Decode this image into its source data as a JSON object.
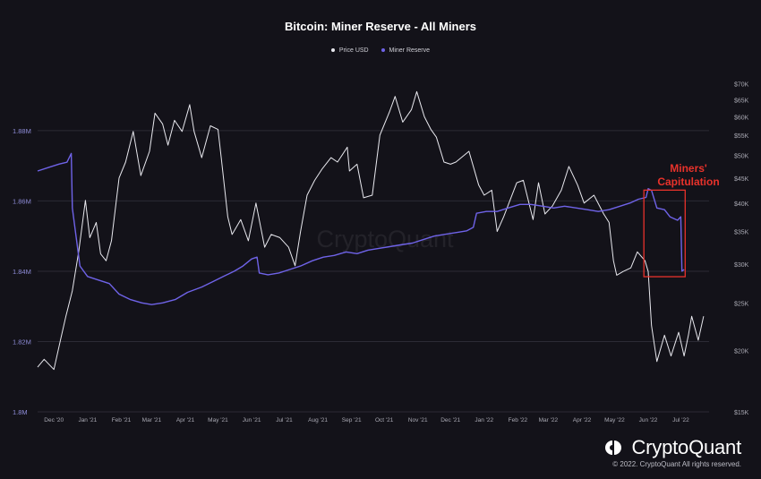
{
  "chart_data": {
    "type": "line",
    "title": "Bitcoin: Miner Reserve - All Miners",
    "legend_position": "top-center",
    "grid": true,
    "x_ticks": [
      "Dec '20",
      "Jan '21",
      "Feb '21",
      "Mar '21",
      "Apr '21",
      "May '21",
      "Jun '21",
      "Jul '21",
      "Aug '21",
      "Sep '21",
      "Oct '21",
      "Nov '21",
      "Dec '21",
      "Jan '22",
      "Feb '22",
      "Mar '22",
      "Apr '22",
      "May '22",
      "Jun '22",
      "Jul '22"
    ],
    "xlim": [
      "2020-11-25",
      "2022-08-05"
    ],
    "y_left": {
      "label": "",
      "ticks": [
        "1.8M",
        "1.82M",
        "1.84M",
        "1.86M",
        "1.88M"
      ],
      "range": [
        1800000,
        1895000
      ]
    },
    "y_right": {
      "label": "",
      "ticks": [
        "$15K",
        "$20K",
        "$25K",
        "$30K",
        "$35K",
        "$40K",
        "$45K",
        "$50K",
        "$55K",
        "$60K",
        "$65K",
        "$70K"
      ],
      "range": [
        15000,
        72000
      ]
    },
    "series": [
      {
        "name": "Price USD",
        "axis": "right",
        "color": "#e8e8ee",
        "points": [
          [
            "2020-11-25",
            18500
          ],
          [
            "2020-12-01",
            19200
          ],
          [
            "2020-12-10",
            18300
          ],
          [
            "2020-12-16",
            21000
          ],
          [
            "2020-12-21",
            23500
          ],
          [
            "2020-12-27",
            26500
          ],
          [
            "2021-01-02",
            32000
          ],
          [
            "2021-01-08",
            40500
          ],
          [
            "2021-01-12",
            34000
          ],
          [
            "2021-01-18",
            36500
          ],
          [
            "2021-01-22",
            31500
          ],
          [
            "2021-01-27",
            30500
          ],
          [
            "2021-02-01",
            33500
          ],
          [
            "2021-02-08",
            45000
          ],
          [
            "2021-02-14",
            48500
          ],
          [
            "2021-02-21",
            56000
          ],
          [
            "2021-02-28",
            45500
          ],
          [
            "2021-03-08",
            51000
          ],
          [
            "2021-03-13",
            61000
          ],
          [
            "2021-03-20",
            58000
          ],
          [
            "2021-03-25",
            52500
          ],
          [
            "2021-03-31",
            59000
          ],
          [
            "2021-04-07",
            56000
          ],
          [
            "2021-04-14",
            63500
          ],
          [
            "2021-04-18",
            56000
          ],
          [
            "2021-04-25",
            49500
          ],
          [
            "2021-05-03",
            57500
          ],
          [
            "2021-05-10",
            56500
          ],
          [
            "2021-05-13",
            49500
          ],
          [
            "2021-05-19",
            37500
          ],
          [
            "2021-05-23",
            34500
          ],
          [
            "2021-05-31",
            37000
          ],
          [
            "2021-06-07",
            33500
          ],
          [
            "2021-06-14",
            40000
          ],
          [
            "2021-06-22",
            32500
          ],
          [
            "2021-06-28",
            34500
          ],
          [
            "2021-07-06",
            34000
          ],
          [
            "2021-07-14",
            32500
          ],
          [
            "2021-07-20",
            29800
          ],
          [
            "2021-07-25",
            35000
          ],
          [
            "2021-07-31",
            41500
          ],
          [
            "2021-08-07",
            44500
          ],
          [
            "2021-08-14",
            47000
          ],
          [
            "2021-08-22",
            49500
          ],
          [
            "2021-08-28",
            48500
          ],
          [
            "2021-09-06",
            52000
          ],
          [
            "2021-09-08",
            46500
          ],
          [
            "2021-09-15",
            48000
          ],
          [
            "2021-09-21",
            41000
          ],
          [
            "2021-09-29",
            41500
          ],
          [
            "2021-10-06",
            55000
          ],
          [
            "2021-10-15",
            61500
          ],
          [
            "2021-10-20",
            66000
          ],
          [
            "2021-10-27",
            58500
          ],
          [
            "2021-11-04",
            62000
          ],
          [
            "2021-11-09",
            67500
          ],
          [
            "2021-11-16",
            60000
          ],
          [
            "2021-11-22",
            56500
          ],
          [
            "2021-11-27",
            54500
          ],
          [
            "2021-12-04",
            48500
          ],
          [
            "2021-12-10",
            48000
          ],
          [
            "2021-12-15",
            48500
          ],
          [
            "2021-12-27",
            51000
          ],
          [
            "2022-01-05",
            43500
          ],
          [
            "2022-01-10",
            41500
          ],
          [
            "2022-01-17",
            42500
          ],
          [
            "2022-01-22",
            35000
          ],
          [
            "2022-01-28",
            37500
          ],
          [
            "2022-02-09",
            44000
          ],
          [
            "2022-02-15",
            44500
          ],
          [
            "2022-02-24",
            37000
          ],
          [
            "2022-03-01",
            44000
          ],
          [
            "2022-03-07",
            38000
          ],
          [
            "2022-03-14",
            39500
          ],
          [
            "2022-03-22",
            42500
          ],
          [
            "2022-03-29",
            47500
          ],
          [
            "2022-04-06",
            43500
          ],
          [
            "2022-04-12",
            40000
          ],
          [
            "2022-04-21",
            41500
          ],
          [
            "2022-04-30",
            38000
          ],
          [
            "2022-05-05",
            36500
          ],
          [
            "2022-05-09",
            30500
          ],
          [
            "2022-05-12",
            28500
          ],
          [
            "2022-05-18",
            29000
          ],
          [
            "2022-05-25",
            29500
          ],
          [
            "2022-05-31",
            31800
          ],
          [
            "2022-06-07",
            30500
          ],
          [
            "2022-06-10",
            29000
          ],
          [
            "2022-06-13",
            22500
          ],
          [
            "2022-06-18",
            19000
          ],
          [
            "2022-06-25",
            21500
          ],
          [
            "2022-07-01",
            19500
          ],
          [
            "2022-07-08",
            21800
          ],
          [
            "2022-07-13",
            19500
          ],
          [
            "2022-07-17",
            21500
          ],
          [
            "2022-07-20",
            23500
          ],
          [
            "2022-07-26",
            21000
          ],
          [
            "2022-07-31",
            23500
          ]
        ]
      },
      {
        "name": "Miner Reserve",
        "axis": "left",
        "color": "#6f63e8",
        "points": [
          [
            "2020-11-25",
            1868500
          ],
          [
            "2020-12-05",
            1869500
          ],
          [
            "2020-12-15",
            1870500
          ],
          [
            "2020-12-22",
            1871000
          ],
          [
            "2020-12-26",
            1873500
          ],
          [
            "2020-12-27",
            1858000
          ],
          [
            "2021-01-03",
            1841500
          ],
          [
            "2021-01-10",
            1838500
          ],
          [
            "2021-01-20",
            1837500
          ],
          [
            "2021-01-30",
            1836500
          ],
          [
            "2021-02-08",
            1833500
          ],
          [
            "2021-02-18",
            1832000
          ],
          [
            "2021-03-01",
            1831000
          ],
          [
            "2021-03-10",
            1830500
          ],
          [
            "2021-03-20",
            1831000
          ],
          [
            "2021-04-01",
            1832000
          ],
          [
            "2021-04-12",
            1834000
          ],
          [
            "2021-04-25",
            1835500
          ],
          [
            "2021-05-05",
            1837000
          ],
          [
            "2021-05-15",
            1838500
          ],
          [
            "2021-05-25",
            1840000
          ],
          [
            "2021-06-02",
            1841500
          ],
          [
            "2021-06-10",
            1843500
          ],
          [
            "2021-06-15",
            1844000
          ],
          [
            "2021-06-17",
            1839500
          ],
          [
            "2021-06-25",
            1839000
          ],
          [
            "2021-07-05",
            1839500
          ],
          [
            "2021-07-15",
            1840500
          ],
          [
            "2021-07-25",
            1841500
          ],
          [
            "2021-08-05",
            1843000
          ],
          [
            "2021-08-15",
            1844000
          ],
          [
            "2021-08-25",
            1844500
          ],
          [
            "2021-09-05",
            1845500
          ],
          [
            "2021-09-15",
            1845000
          ],
          [
            "2021-09-25",
            1846000
          ],
          [
            "2021-10-05",
            1846500
          ],
          [
            "2021-10-15",
            1847000
          ],
          [
            "2021-10-25",
            1847500
          ],
          [
            "2021-11-05",
            1848000
          ],
          [
            "2021-11-15",
            1849000
          ],
          [
            "2021-11-25",
            1850000
          ],
          [
            "2021-12-05",
            1850500
          ],
          [
            "2021-12-15",
            1851000
          ],
          [
            "2021-12-25",
            1851500
          ],
          [
            "2021-12-31",
            1852500
          ],
          [
            "2022-01-03",
            1856500
          ],
          [
            "2022-01-12",
            1857000
          ],
          [
            "2022-01-22",
            1857000
          ],
          [
            "2022-02-01",
            1858000
          ],
          [
            "2022-02-12",
            1859000
          ],
          [
            "2022-02-22",
            1859000
          ],
          [
            "2022-03-05",
            1858500
          ],
          [
            "2022-03-15",
            1858000
          ],
          [
            "2022-03-25",
            1858500
          ],
          [
            "2022-04-05",
            1858000
          ],
          [
            "2022-04-15",
            1857500
          ],
          [
            "2022-04-25",
            1857000
          ],
          [
            "2022-05-05",
            1857500
          ],
          [
            "2022-05-15",
            1858500
          ],
          [
            "2022-05-25",
            1859500
          ],
          [
            "2022-06-01",
            1860500
          ],
          [
            "2022-06-08",
            1861000
          ],
          [
            "2022-06-10",
            1863500
          ],
          [
            "2022-06-13",
            1863000
          ],
          [
            "2022-06-18",
            1858000
          ],
          [
            "2022-06-25",
            1857500
          ],
          [
            "2022-06-30",
            1855500
          ],
          [
            "2022-07-07",
            1854500
          ],
          [
            "2022-07-10",
            1855500
          ],
          [
            "2022-07-11",
            1840000
          ],
          [
            "2022-07-13",
            1840500
          ]
        ]
      }
    ],
    "annotations": [
      {
        "text": "Miners'\nCapitulation",
        "color": "#e8322b",
        "box": {
          "x": [
            "2022-06-06",
            "2022-07-14"
          ],
          "y_right": [
            28300,
            42500
          ]
        }
      }
    ],
    "watermark": "CryptoQuant"
  },
  "footer": {
    "brand": "CryptoQuant",
    "copyright": "© 2022. CryptoQuant All rights reserved."
  }
}
